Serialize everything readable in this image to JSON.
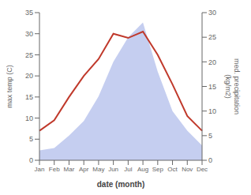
{
  "chart_data": {
    "type": "line",
    "xlabel": "date (month)",
    "ylabel": "max temp (C)",
    "y2label": "med. precipitation\n(kg/m2)",
    "categories": [
      "Jan",
      "Feb",
      "Mar",
      "Apr",
      "May",
      "Jun",
      "Jul",
      "Aug",
      "Sep",
      "Oct",
      "Nov",
      "Dec"
    ],
    "series": [
      {
        "type": "area",
        "axis": "y2",
        "color": "#c5cef0",
        "values": [
          2,
          2.5,
          5,
          8,
          13,
          20,
          25,
          28,
          18,
          10,
          6,
          3
        ]
      },
      {
        "type": "line",
        "color": "#c0392b",
        "values": [
          7,
          9.5,
          15,
          20,
          24,
          30,
          29,
          30.5,
          25,
          18,
          10.5,
          7
        ]
      }
    ],
    "ylim": [
      0,
      35
    ],
    "yticks": [
      0,
      5,
      10,
      15,
      20,
      25,
      30,
      35
    ],
    "y2lim": [
      0,
      30
    ],
    "y2ticks": [
      0,
      5,
      10,
      15,
      20,
      25,
      30
    ],
    "grid": false
  }
}
